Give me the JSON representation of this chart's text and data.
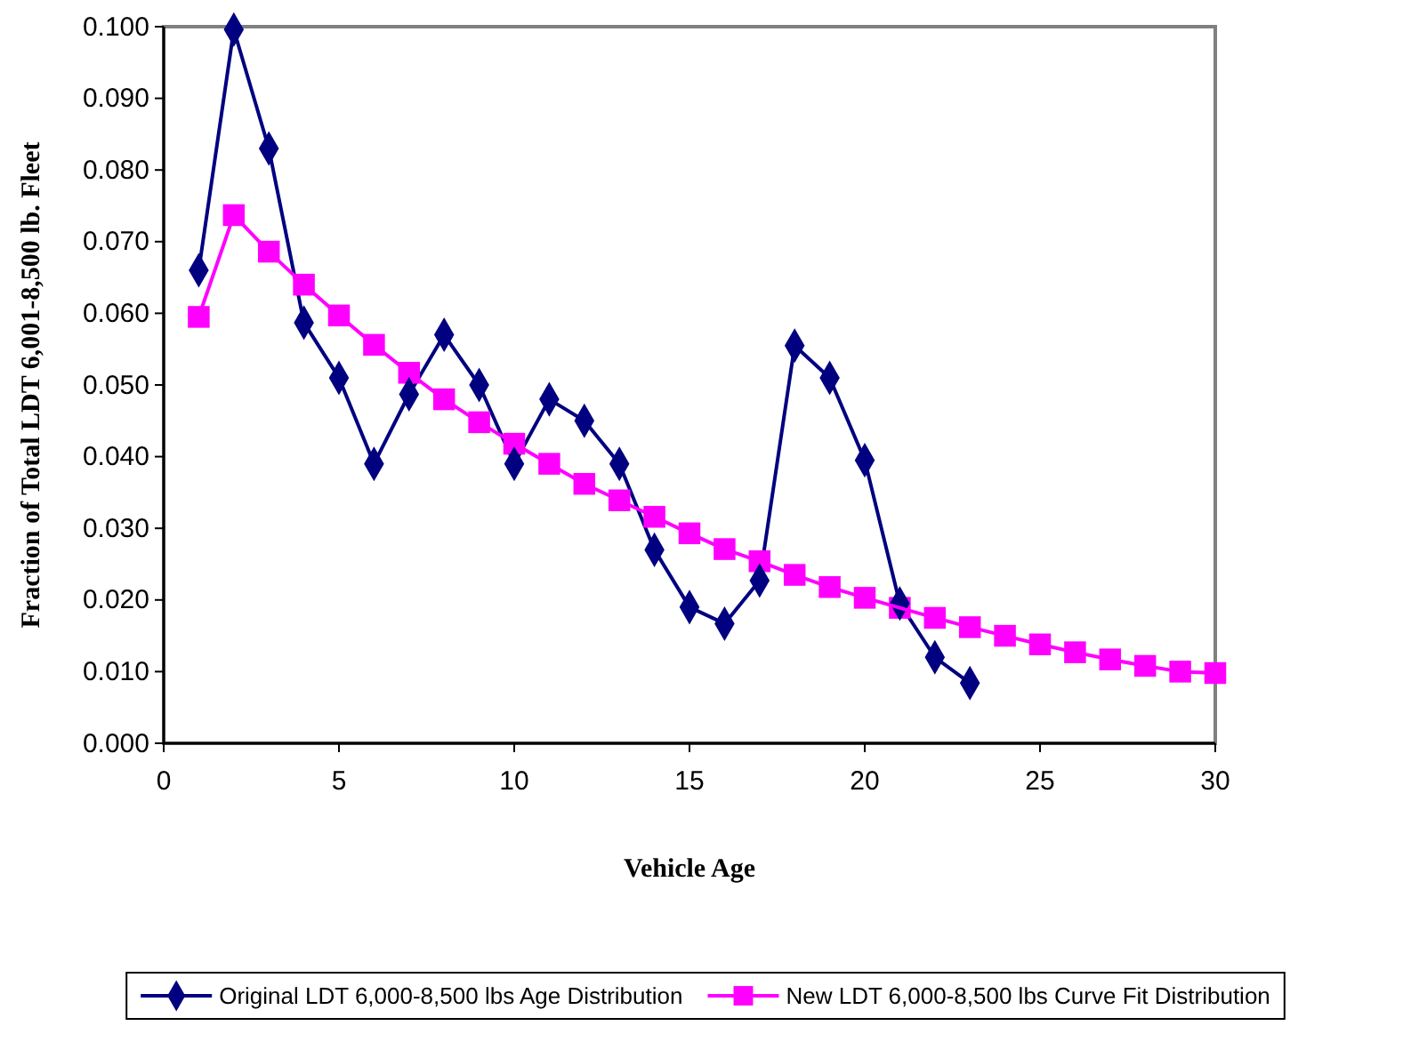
{
  "chart_data": {
    "type": "line",
    "xlabel": "Vehicle Age",
    "ylabel": "Fraction of Total LDT 6,001-8,500 lb. Fleet",
    "xlim": [
      0,
      30
    ],
    "xticks": [
      0,
      5,
      10,
      15,
      20,
      25,
      30
    ],
    "ylim": [
      0,
      0.1
    ],
    "yticks": [
      {
        "value": 0,
        "label": "0.000"
      },
      {
        "value": 0.01,
        "label": "0.010"
      },
      {
        "value": 0.02,
        "label": "0.020"
      },
      {
        "value": 0.03,
        "label": "0.030"
      },
      {
        "value": 0.04,
        "label": "0.040"
      },
      {
        "value": 0.05,
        "label": "0.050"
      },
      {
        "value": 0.06,
        "label": "0.060"
      },
      {
        "value": 0.07,
        "label": "0.070"
      },
      {
        "value": 0.08,
        "label": "0.080"
      },
      {
        "value": 0.09,
        "label": "0.090"
      },
      {
        "value": 0.1,
        "label": "0.100"
      }
    ],
    "grid": false,
    "legend": "bottom",
    "line_style": "solid",
    "series": [
      {
        "name": "Original LDT 6,000-8,500 lbs Age Distribution",
        "color": "#000080",
        "marker": "diamond",
        "x": [
          1,
          2,
          3,
          4,
          5,
          6,
          7,
          8,
          9,
          10,
          11,
          12,
          13,
          14,
          15,
          16,
          17,
          18,
          19,
          20,
          21,
          22,
          23
        ],
        "values": [
          0.066,
          0.0996,
          0.083,
          0.0587,
          0.051,
          0.039,
          0.0487,
          0.057,
          0.05,
          0.039,
          0.048,
          0.045,
          0.039,
          0.027,
          0.019,
          0.0167,
          0.0227,
          0.0555,
          0.051,
          0.0395,
          0.0195,
          0.012,
          0.0084
        ]
      },
      {
        "name": "New LDT 6,000-8,500 lbs Curve Fit Distribution",
        "color": "#ff00ff",
        "marker": "square",
        "x": [
          1,
          2,
          3,
          4,
          5,
          6,
          7,
          8,
          9,
          10,
          11,
          12,
          13,
          14,
          15,
          16,
          17,
          18,
          19,
          20,
          21,
          22,
          23,
          24,
          25,
          26,
          27,
          28,
          29,
          30
        ],
        "values": [
          0.0595,
          0.0737,
          0.0686,
          0.064,
          0.0597,
          0.0556,
          0.0517,
          0.048,
          0.0448,
          0.0418,
          0.039,
          0.0362,
          0.0339,
          0.0316,
          0.0293,
          0.0271,
          0.0254,
          0.0235,
          0.0218,
          0.0203,
          0.0189,
          0.0175,
          0.0162,
          0.015,
          0.0138,
          0.0127,
          0.0117,
          0.0108,
          0.01,
          0.0098
        ]
      }
    ]
  }
}
